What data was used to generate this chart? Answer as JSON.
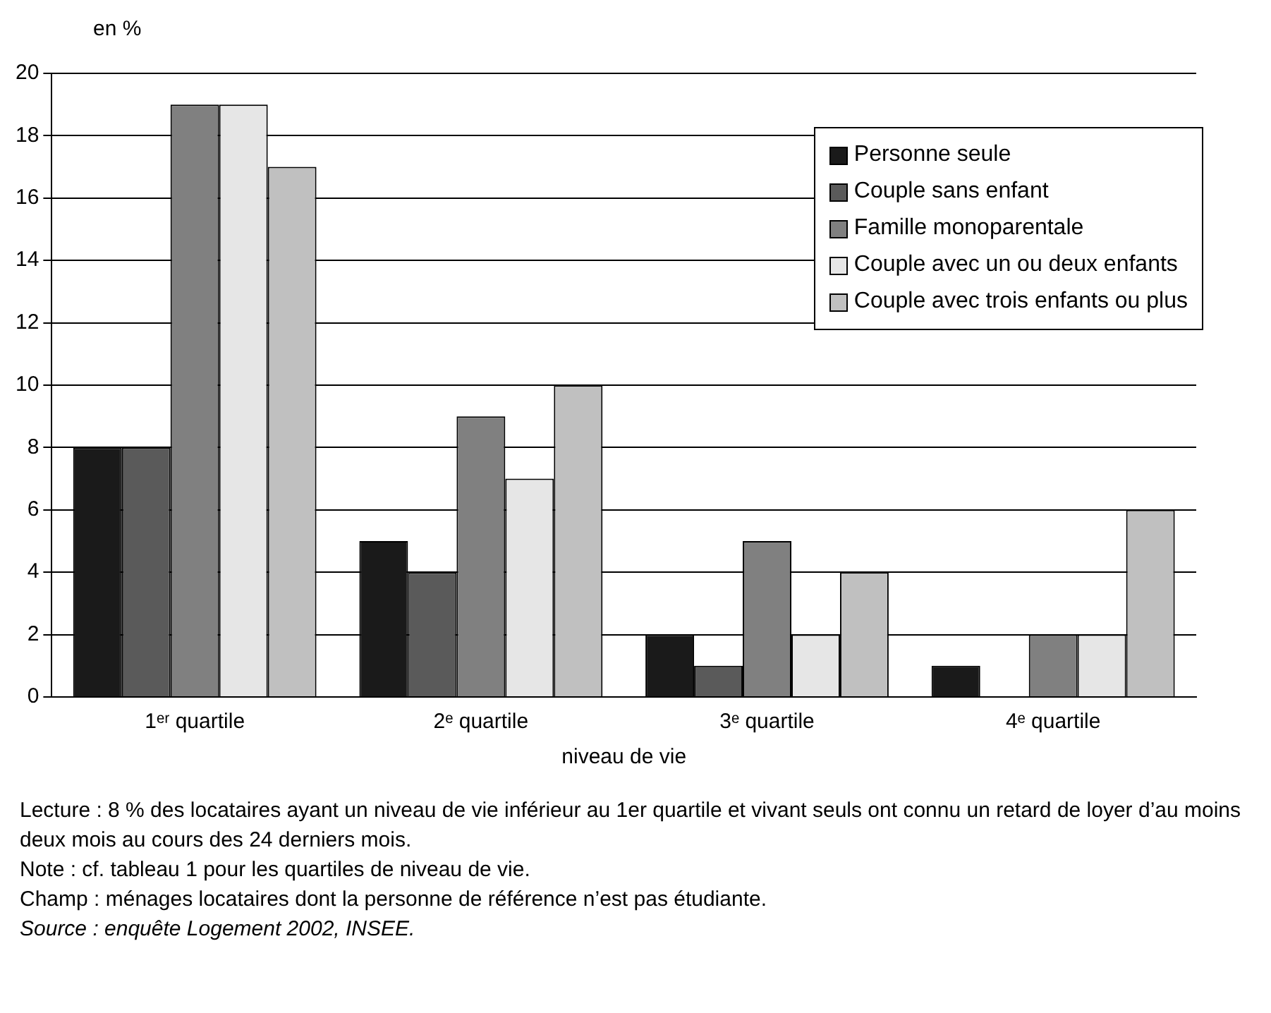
{
  "chart_data": {
    "type": "bar",
    "ylabel": "en %",
    "xlabel": "niveau de vie",
    "categories": [
      "1ᵉʳ quartile",
      "2ᵉ quartile",
      "3ᵉ quartile",
      "4ᵉ quartile"
    ],
    "series": [
      {
        "name": "Personne seule",
        "color": "#1a1a1a",
        "values": [
          8,
          5,
          2,
          1
        ]
      },
      {
        "name": "Couple sans enfant",
        "color": "#5a5a5a",
        "values": [
          8,
          4,
          1,
          0
        ]
      },
      {
        "name": "Famille monoparentale",
        "color": "#808080",
        "values": [
          19,
          9,
          5,
          2
        ]
      },
      {
        "name": "Couple avec un ou deux enfants",
        "color": "#e6e6e6",
        "values": [
          19,
          7,
          2,
          2
        ]
      },
      {
        "name": "Couple avec trois enfants ou plus",
        "color": "#c0c0c0",
        "values": [
          17,
          10,
          4,
          6
        ]
      }
    ],
    "ylim": [
      0,
      20
    ],
    "yticks": [
      0,
      2,
      4,
      6,
      8,
      10,
      12,
      14,
      16,
      18,
      20
    ],
    "grid": "y",
    "legend": "top right",
    "annotations": [
      "Lecture : 8 % des locataires ayant un niveau de vie inférieur au 1er quartile et vivant seuls ont connu un retard de loyer d’au moins deux mois au cours des 24 derniers mois.",
      "Note : cf. tableau 1 pour les quartiles de niveau de vie.",
      "Champ : ménages locataires dont la personne de référence n’est pas étudiante.",
      "Source : enquête Logement 2002, INSEE."
    ]
  }
}
